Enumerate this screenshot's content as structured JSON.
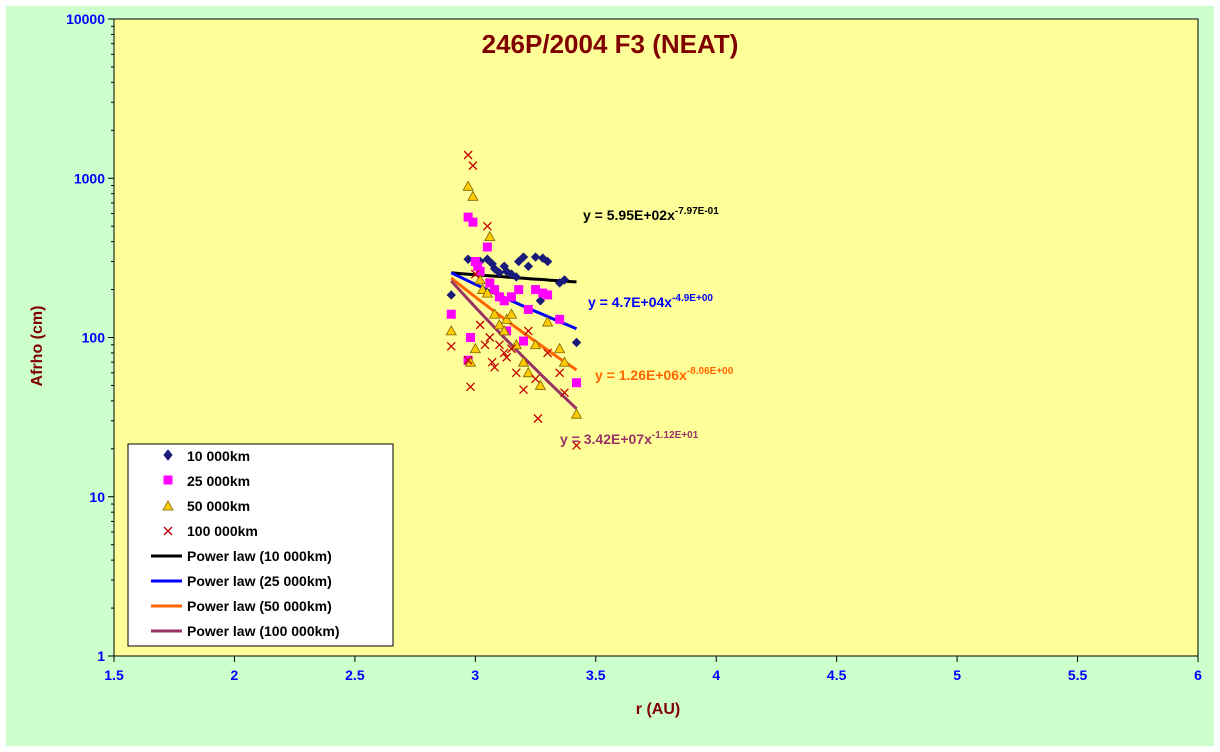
{
  "chart_data": {
    "type": "scatter",
    "title": "246P/2004 F3 (NEAT)",
    "xlabel": "r (AU)",
    "ylabel": "Afrho (cm)",
    "xlim": [
      1.5,
      6
    ],
    "ylim": [
      1,
      10000
    ],
    "yscale": "log",
    "grid": false,
    "legend_placement": "bottom-left",
    "x_ticks": [
      "1.5",
      "2",
      "2.5",
      "3",
      "3.5",
      "4",
      "4.5",
      "5",
      "5.5",
      "6"
    ],
    "y_ticks": [
      "1",
      "10",
      "100",
      "1000",
      "10000"
    ],
    "colors": {
      "plot_bg": "#ffff99",
      "chart_bg": "#ccffcc",
      "title": "#800000",
      "tick": "#0000ff"
    },
    "series": [
      {
        "name": "10 000km",
        "marker": "diamond",
        "color": "#1a1a7a",
        "points": [
          [
            2.9,
            185
          ],
          [
            2.97,
            310
          ],
          [
            3.0,
            290
          ],
          [
            3.02,
            300
          ],
          [
            3.05,
            310
          ],
          [
            3.07,
            290
          ],
          [
            3.08,
            270
          ],
          [
            3.1,
            255
          ],
          [
            3.12,
            280
          ],
          [
            3.13,
            260
          ],
          [
            3.15,
            250
          ],
          [
            3.17,
            240
          ],
          [
            3.18,
            300
          ],
          [
            3.2,
            320
          ],
          [
            3.22,
            280
          ],
          [
            3.25,
            320
          ],
          [
            3.28,
            315
          ],
          [
            3.3,
            300
          ],
          [
            3.35,
            220
          ],
          [
            3.37,
            230
          ],
          [
            3.42,
            93
          ],
          [
            3.27,
            170
          ]
        ]
      },
      {
        "name": "25 000km",
        "marker": "square",
        "color": "#ff00ff",
        "points": [
          [
            2.9,
            140
          ],
          [
            2.97,
            570
          ],
          [
            2.98,
            100
          ],
          [
            2.99,
            530
          ],
          [
            3.0,
            300
          ],
          [
            3.01,
            280
          ],
          [
            3.02,
            260
          ],
          [
            3.05,
            370
          ],
          [
            3.06,
            220
          ],
          [
            3.08,
            200
          ],
          [
            3.1,
            180
          ],
          [
            3.12,
            170
          ],
          [
            3.13,
            110
          ],
          [
            3.15,
            180
          ],
          [
            3.18,
            200
          ],
          [
            3.2,
            95
          ],
          [
            3.22,
            150
          ],
          [
            3.25,
            200
          ],
          [
            3.28,
            190
          ],
          [
            3.3,
            185
          ],
          [
            3.35,
            130
          ],
          [
            3.42,
            52
          ],
          [
            2.97,
            72
          ]
        ]
      },
      {
        "name": "50 000km",
        "marker": "triangle",
        "color": "#ffcc00",
        "points": [
          [
            2.9,
            110
          ],
          [
            2.97,
            890
          ],
          [
            2.99,
            770
          ],
          [
            3.0,
            85
          ],
          [
            3.02,
            230
          ],
          [
            3.03,
            200
          ],
          [
            3.05,
            190
          ],
          [
            3.06,
            430
          ],
          [
            3.08,
            140
          ],
          [
            3.1,
            120
          ],
          [
            3.12,
            110
          ],
          [
            3.13,
            130
          ],
          [
            3.15,
            140
          ],
          [
            3.17,
            90
          ],
          [
            3.2,
            70
          ],
          [
            3.22,
            60
          ],
          [
            3.25,
            90
          ],
          [
            3.27,
            50
          ],
          [
            3.3,
            125
          ],
          [
            3.35,
            85
          ],
          [
            3.37,
            70
          ],
          [
            3.42,
            33
          ],
          [
            2.98,
            70
          ]
        ]
      },
      {
        "name": "100 000km",
        "marker": "x",
        "color": "#c00000",
        "points": [
          [
            2.9,
            88
          ],
          [
            2.97,
            1400
          ],
          [
            2.99,
            1200
          ],
          [
            2.98,
            49
          ],
          [
            3.0,
            250
          ],
          [
            3.02,
            120
          ],
          [
            3.04,
            90
          ],
          [
            3.05,
            500
          ],
          [
            3.06,
            100
          ],
          [
            3.07,
            70
          ],
          [
            3.08,
            65
          ],
          [
            3.1,
            90
          ],
          [
            3.12,
            80
          ],
          [
            3.13,
            75
          ],
          [
            3.15,
            85
          ],
          [
            3.17,
            60
          ],
          [
            3.2,
            47
          ],
          [
            3.22,
            110
          ],
          [
            3.25,
            55
          ],
          [
            3.26,
            31
          ],
          [
            3.3,
            80
          ],
          [
            3.35,
            60
          ],
          [
            3.37,
            45
          ],
          [
            3.42,
            21
          ],
          [
            2.97,
            72
          ]
        ]
      }
    ],
    "trendlines": [
      {
        "name": "Power law (10 000km)",
        "color": "#000000",
        "a": 595,
        "b": -0.797,
        "x_range": [
          2.9,
          3.42
        ]
      },
      {
        "name": "Power law (25 000km)",
        "color": "#0000ff",
        "a": 47000,
        "b": -4.9,
        "x_range": [
          2.9,
          3.42
        ]
      },
      {
        "name": "Power law (50 000km)",
        "color": "#ff6600",
        "a": 1260000,
        "b": -8.06,
        "x_range": [
          2.9,
          3.42
        ]
      },
      {
        "name": "Power law (100 000km)",
        "color": "#993366",
        "a": 34200000,
        "b": -11.2,
        "x_range": [
          2.9,
          3.42
        ]
      }
    ],
    "equations": [
      {
        "base": "y = 5.95E+02x",
        "exp": "-7.97E-01",
        "color": "#000000"
      },
      {
        "base": "y = 4.7E+04x",
        "exp": "-4.9E+00",
        "color": "#0000ff"
      },
      {
        "base": "y = 1.26E+06x",
        "exp": "-8.06E+00",
        "color": "#ff6600"
      },
      {
        "base": "y = 3.42E+07x",
        "exp": "-1.12E+01",
        "color": "#993366"
      }
    ]
  }
}
